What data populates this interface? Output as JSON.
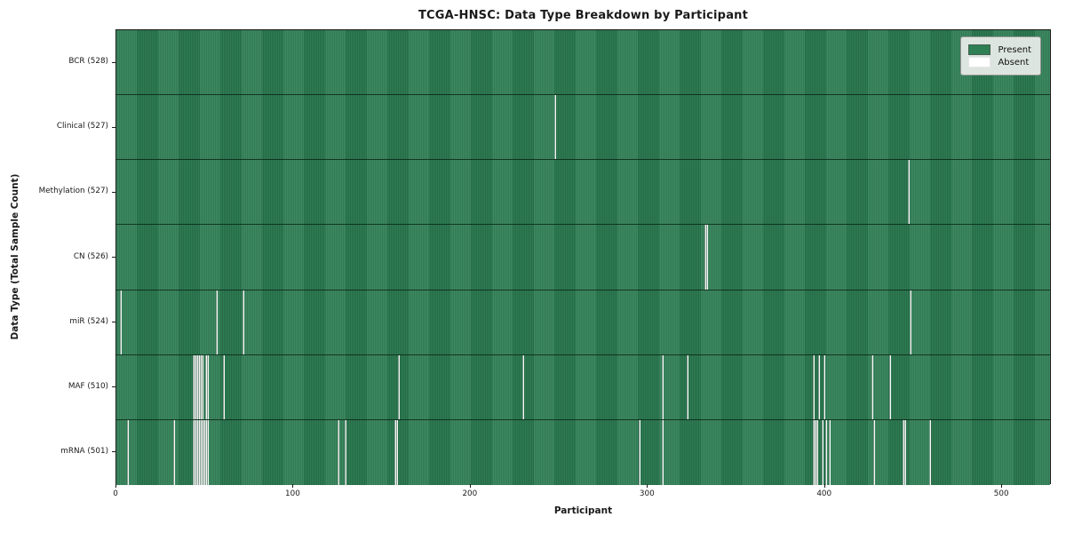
{
  "title": "TCGA-HNSC: Data Type Breakdown by Participant",
  "axes": {
    "xlabel": "Participant",
    "ylabel": "Data Type (Total Sample Count)"
  },
  "legend": {
    "present_label": "Present",
    "absent_label": "Absent"
  },
  "colors": {
    "present": "#2e8054",
    "present_grid": "#215c3b",
    "absent": "#f8f8f8",
    "legend_bg": "#e9ede9",
    "plot_border": "#1a1a1a"
  },
  "chart_data": {
    "type": "heatmap",
    "title": "TCGA-HNSC: Data Type Breakdown by Participant",
    "xlabel": "Participant",
    "ylabel": "Data Type (Total Sample Count)",
    "n_participants": 528,
    "x_ticks": [
      0,
      100,
      200,
      300,
      400,
      500
    ],
    "x_range": [
      0,
      528
    ],
    "legend_position": "upper right",
    "legend_entries": [
      {
        "label": "Present",
        "color": "#2e8054"
      },
      {
        "label": "Absent",
        "color": "#ffffff"
      }
    ],
    "rows": [
      {
        "label": "BCR (528)",
        "data_type": "BCR",
        "present_count": 528,
        "absent_count": 0,
        "absent_participants": []
      },
      {
        "label": "Clinical (527)",
        "data_type": "Clinical",
        "present_count": 527,
        "absent_count": 1,
        "absent_participants": [
          247
        ]
      },
      {
        "label": "Methylation (527)",
        "data_type": "Methylation",
        "present_count": 527,
        "absent_count": 1,
        "absent_participants": [
          447
        ]
      },
      {
        "label": "CN (526)",
        "data_type": "CN",
        "present_count": 526,
        "absent_count": 2,
        "absent_participants": [
          332,
          333
        ]
      },
      {
        "label": "miR (524)",
        "data_type": "miR",
        "present_count": 524,
        "absent_count": 4,
        "absent_participants": [
          2,
          56,
          71,
          448
        ]
      },
      {
        "label": "MAF (510)",
        "data_type": "MAF",
        "present_count": 510,
        "absent_count": 18,
        "absent_participants": [
          43,
          44,
          45,
          46,
          47,
          48,
          50,
          51,
          60,
          159,
          229,
          308,
          322,
          393,
          396,
          399,
          426,
          436
        ]
      },
      {
        "label": "mRNA (501)",
        "data_type": "mRNA",
        "present_count": 501,
        "absent_count": 27,
        "absent_participants": [
          6,
          32,
          43,
          44,
          45,
          46,
          47,
          48,
          49,
          50,
          51,
          125,
          129,
          157,
          158,
          295,
          308,
          393,
          394,
          395,
          398,
          400,
          402,
          427,
          444,
          445,
          459
        ]
      }
    ]
  }
}
